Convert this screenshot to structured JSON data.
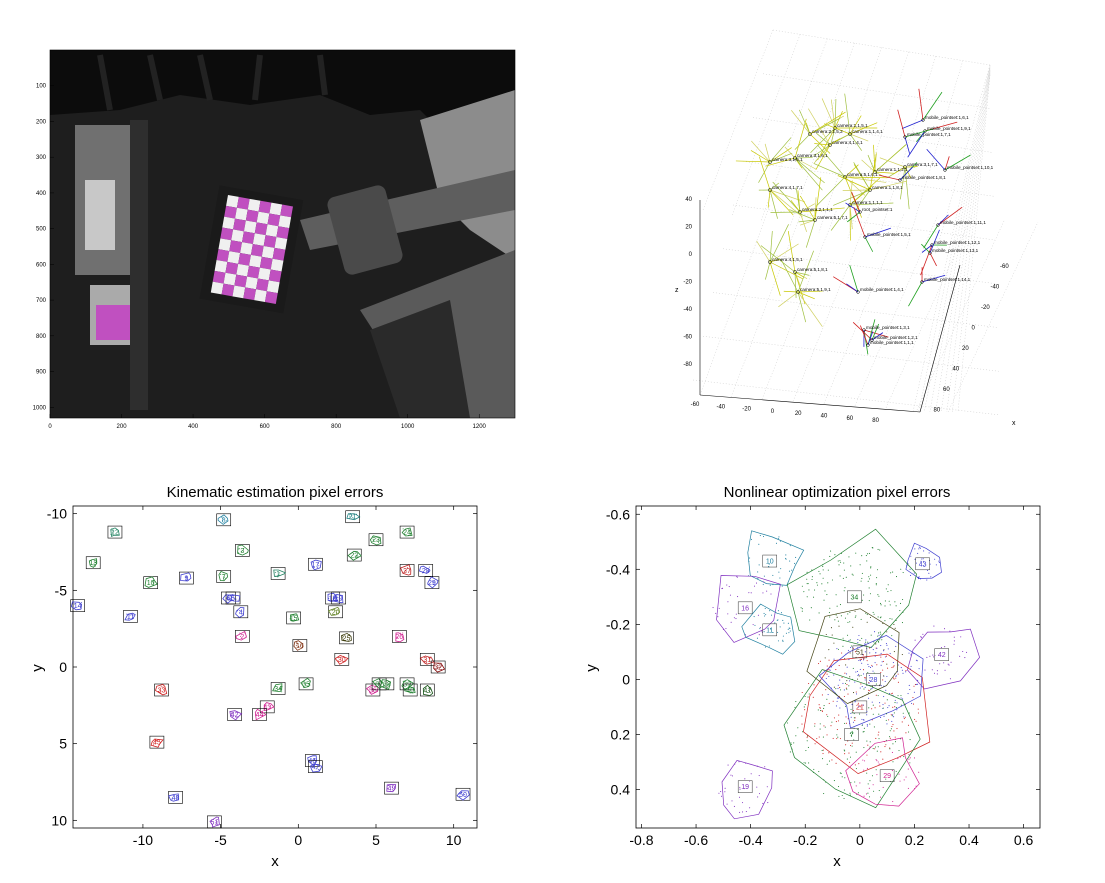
{
  "photo": {
    "xticks": [
      "0",
      "200",
      "400",
      "600",
      "800",
      "1000",
      "1200"
    ],
    "yticks": [
      "100",
      "200",
      "300",
      "400",
      "500",
      "600",
      "700",
      "800",
      "900",
      "1000"
    ],
    "palette": {
      "dark": "#161616",
      "wall": "#3a3a3a",
      "metal": "#9a9a9a",
      "checker": "#c050c0"
    }
  },
  "scene3d": {
    "z_ticks": [
      "40",
      "20",
      "0",
      "-20",
      "-40",
      "-60",
      "-80"
    ],
    "x_ticks": [
      "-60",
      "-40",
      "-20",
      "0",
      "20",
      "40",
      "60",
      "80"
    ],
    "y_ticks": [
      "-60",
      "-40",
      "-20",
      "0",
      "20",
      "40",
      "60",
      "80"
    ],
    "z_label": "z",
    "x_label": "x",
    "cameras": [
      {
        "name": "camera:1,1,5,1",
        "u": 0.0
      },
      {
        "name": "camera:2,1,5,2",
        "u": 0.0
      },
      {
        "name": "camera:1,1,4,1",
        "u": 0.0
      },
      {
        "name": "camera:4,1,4,1",
        "u": 0.0
      },
      {
        "name": "camera:3,1,5,1",
        "u": 0.0
      },
      {
        "name": "camera:3,1,6,1",
        "u": 0.0
      },
      {
        "name": "camera:1,1,2,1",
        "u": 0.0
      },
      {
        "name": "camera:5,1,6,1",
        "u": 0.0
      },
      {
        "name": "camera:4,1,7,1",
        "u": 0.0
      },
      {
        "name": "camera:1,1,1,1",
        "u": 0.0
      },
      {
        "name": "camera:2,1,1,1",
        "u": 0.0
      },
      {
        "name": "camera:5,1,7,1",
        "u": 0.0
      },
      {
        "name": "camera:4,1,5,1",
        "u": 0.0
      },
      {
        "name": "camera:5,1,8,1",
        "u": 0.0
      },
      {
        "name": "camera:5,1,9,1",
        "u": 0.0
      },
      {
        "name": "camera:3,1,7,1",
        "u": 0.0
      },
      {
        "name": "camera:1,1,8,1",
        "u": 0.0
      }
    ],
    "points": [
      "mobile_pointset:1,6,1",
      "mobile_pointset:1,9,1",
      "mobile_pointset:1,7,1",
      "mobile_pointset:1,10,1",
      "mobile_pointset:1,8,1",
      "root_pointset:1",
      "mobile_pointset:1,11,1",
      "mobile_pointset:1,12,1",
      "mobile_pointset:1,5,1",
      "mobile_pointset:1,13,1",
      "mobile_pointset:1,14,1",
      "mobile_pointset:1,4,1",
      "mobile_pointset:1,3,1",
      "mobile_pointset:1,2,1",
      "mobile_pointset:1,1,1"
    ]
  },
  "chart_data": [
    {
      "type": "scatter",
      "title": "Kinematic estimation pixel errors",
      "xlabel": "x",
      "ylabel": "y",
      "xlim": [
        -14.5,
        11.5
      ],
      "ylim": [
        -10.5,
        10.5
      ],
      "y_reversed": true,
      "xticks": [
        -10,
        -5,
        0,
        5,
        10
      ],
      "yticks": [
        -10,
        -5,
        0,
        5,
        10
      ],
      "boxes": [
        {
          "x": -14.2,
          "y": -4.0,
          "c": "#4040d0"
        },
        {
          "x": -13.2,
          "y": -6.8,
          "c": "#208030"
        },
        {
          "x": -11.8,
          "y": -8.8,
          "c": "#208060"
        },
        {
          "x": -10.8,
          "y": -3.3,
          "c": "#4040d0"
        },
        {
          "x": -9.5,
          "y": -5.5,
          "c": "#208030"
        },
        {
          "x": -7.2,
          "y": -5.8,
          "c": "#4040d0"
        },
        {
          "x": -4.8,
          "y": -9.6,
          "c": "#2080a0"
        },
        {
          "x": -4.8,
          "y": -5.9,
          "c": "#208030"
        },
        {
          "x": -4.5,
          "y": -4.5,
          "c": "#4040d0"
        },
        {
          "x": -4.2,
          "y": -4.5,
          "c": "#4040d0"
        },
        {
          "x": -3.7,
          "y": -3.6,
          "c": "#4040d0"
        },
        {
          "x": -3.6,
          "y": -7.6,
          "c": "#208030"
        },
        {
          "x": -3.6,
          "y": -2.0,
          "c": "#d02090"
        },
        {
          "x": -1.3,
          "y": -6.1,
          "c": "#208060"
        },
        {
          "x": -0.3,
          "y": -3.2,
          "c": "#208030"
        },
        {
          "x": 0.1,
          "y": -1.4,
          "c": "#803010"
        },
        {
          "x": 1.1,
          "y": -6.7,
          "c": "#4040d0"
        },
        {
          "x": 2.2,
          "y": -4.5,
          "c": "#4040d0"
        },
        {
          "x": 2.6,
          "y": -4.5,
          "c": "#4040d0"
        },
        {
          "x": 2.4,
          "y": -3.6,
          "c": "#608020"
        },
        {
          "x": 3.5,
          "y": -9.8,
          "c": "#208080"
        },
        {
          "x": 3.6,
          "y": -7.3,
          "c": "#208030"
        },
        {
          "x": 5.0,
          "y": -8.3,
          "c": "#208030"
        },
        {
          "x": 7.0,
          "y": -8.8,
          "c": "#208030"
        },
        {
          "x": 3.1,
          "y": -1.9,
          "c": "#404010"
        },
        {
          "x": 6.5,
          "y": -2.0,
          "c": "#d02090"
        },
        {
          "x": 7.0,
          "y": -6.3,
          "c": "#c02020"
        },
        {
          "x": 8.2,
          "y": -6.3,
          "c": "#4040d0"
        },
        {
          "x": 8.6,
          "y": -5.5,
          "c": "#4040d0"
        },
        {
          "x": 2.8,
          "y": -0.5,
          "c": "#d02020"
        },
        {
          "x": 8.3,
          "y": -0.5,
          "c": "#c02020"
        },
        {
          "x": 9.0,
          "y": 0.0,
          "c": "#800000"
        },
        {
          "x": -8.8,
          "y": 1.5,
          "c": "#d02020"
        },
        {
          "x": -1.3,
          "y": 1.4,
          "c": "#208030"
        },
        {
          "x": 0.5,
          "y": 1.1,
          "c": "#208030"
        },
        {
          "x": 4.8,
          "y": 1.5,
          "c": "#d02090"
        },
        {
          "x": 5.2,
          "y": 1.1,
          "c": "#208030"
        },
        {
          "x": 5.7,
          "y": 1.1,
          "c": "#208030"
        },
        {
          "x": 7.0,
          "y": 1.1,
          "c": "#208030"
        },
        {
          "x": 7.2,
          "y": 1.5,
          "c": "#208030"
        },
        {
          "x": 8.3,
          "y": 1.5,
          "c": "#105010"
        },
        {
          "x": -4.1,
          "y": 3.1,
          "c": "#8030c0"
        },
        {
          "x": -2.0,
          "y": 2.6,
          "c": "#d02090"
        },
        {
          "x": -2.5,
          "y": 3.1,
          "c": "#d02090"
        },
        {
          "x": -9.1,
          "y": 4.9,
          "c": "#d02020"
        },
        {
          "x": 0.9,
          "y": 6.1,
          "c": "#4040d0"
        },
        {
          "x": 1.1,
          "y": 6.5,
          "c": "#4040d0"
        },
        {
          "x": -7.9,
          "y": 8.5,
          "c": "#4040d0"
        },
        {
          "x": 6.0,
          "y": 7.9,
          "c": "#8030c0"
        },
        {
          "x": 10.6,
          "y": 8.3,
          "c": "#4040d0"
        },
        {
          "x": -5.4,
          "y": 10.1,
          "c": "#8030c0"
        }
      ],
      "labels": [
        "14",
        "13",
        "12",
        "11",
        "10",
        "9",
        "8",
        "7",
        "6",
        "5",
        "4",
        "3",
        "2",
        "1",
        "15",
        "16",
        "17",
        "18",
        "19",
        "20",
        "21",
        "22",
        "23",
        "24",
        "25",
        "26",
        "27",
        "28",
        "29",
        "30",
        "31",
        "32",
        "33",
        "34",
        "35",
        "36",
        "37",
        "38",
        "39",
        "40",
        "41",
        "42",
        "43",
        "44",
        "45",
        "46",
        "47",
        "48",
        "49",
        "50",
        "51"
      ]
    },
    {
      "type": "scatter",
      "title": "Nonlinear optimization pixel errors",
      "xlabel": "x",
      "ylabel": "y",
      "xlim": [
        -0.82,
        0.66
      ],
      "ylim": [
        -0.63,
        0.54
      ],
      "y_reversed": true,
      "xticks": [
        -0.8,
        -0.6,
        -0.4,
        -0.2,
        0,
        0.2,
        0.4,
        0.6
      ],
      "yticks": [
        -0.6,
        -0.4,
        -0.2,
        0,
        0.2,
        0.4
      ],
      "clusters": [
        {
          "x": -0.33,
          "y": -0.43,
          "c": "#2080a0",
          "r": 0.13
        },
        {
          "x": -0.42,
          "y": -0.26,
          "c": "#8030c0",
          "r": 0.15
        },
        {
          "x": -0.33,
          "y": -0.18,
          "c": "#2080a0",
          "r": 0.1
        },
        {
          "x": -0.42,
          "y": 0.39,
          "c": "#8030c0",
          "r": 0.13
        },
        {
          "x": 0.23,
          "y": -0.42,
          "c": "#4040d0",
          "r": 0.08
        },
        {
          "x": 0.3,
          "y": -0.09,
          "c": "#8030c0",
          "r": 0.14
        },
        {
          "x": -0.02,
          "y": -0.3,
          "c": "#208030",
          "r": 0.25
        },
        {
          "x": 0.0,
          "y": 0.1,
          "c": "#d02020",
          "r": 0.28
        },
        {
          "x": 0.05,
          "y": 0.0,
          "c": "#4040d0",
          "r": 0.22
        },
        {
          "x": -0.03,
          "y": 0.2,
          "c": "#208030",
          "r": 0.3
        },
        {
          "x": 0.1,
          "y": 0.35,
          "c": "#d02090",
          "r": 0.15
        },
        {
          "x": 0.0,
          "y": -0.1,
          "c": "#404010",
          "r": 0.2
        }
      ],
      "labels": [
        "10",
        "16",
        "11",
        "19",
        "43",
        "42",
        "34",
        "21",
        "28",
        "7",
        "29",
        "51"
      ]
    }
  ]
}
